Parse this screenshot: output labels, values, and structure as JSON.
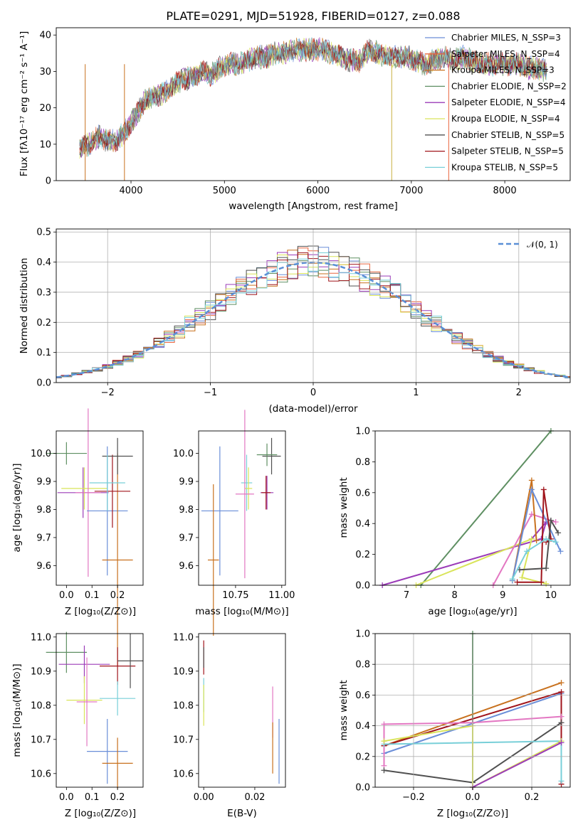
{
  "chart_data": [
    {
      "id": "spectrum",
      "type": "line",
      "title": "PLATE=0291, MJD=51928, FIBERID=0127, z=0.088",
      "xlabel": "wavelength [Angstrom, rest frame]",
      "ylabel": "Flux [fλ10⁻¹⁷ erg cm⁻² s⁻¹ A⁻¹]",
      "xlim": [
        3200,
        8700
      ],
      "ylim": [
        0,
        42
      ],
      "xticks": [
        "4000",
        "5000",
        "6000",
        "7000",
        "8000"
      ],
      "yticks": [
        "0",
        "10",
        "20",
        "30",
        "40"
      ],
      "grid": false,
      "legend_position": "top-right",
      "series": [
        {
          "name": "Chabrier MILES, N_SSP=3",
          "color": "#6a8ed8"
        },
        {
          "name": "Salpeter MILES, N_SSP=4",
          "color": "#e8653e"
        },
        {
          "name": "Kroupa MILES, N_SSP=3",
          "color": "#c8711e"
        },
        {
          "name": "Chabrier ELODIE, N_SSP=2",
          "color": "#5e8f62"
        },
        {
          "name": "Salpeter ELODIE, N_SSP=4",
          "color": "#9b3bb8"
        },
        {
          "name": "Kroupa ELODIE, N_SSP=4",
          "color": "#d9e45a"
        },
        {
          "name": "Chabrier STELIB, N_SSP=5",
          "color": "#505050"
        },
        {
          "name": "Salpeter STELIB, N_SSP=5",
          "color": "#a0151c"
        },
        {
          "name": "Kroupa STELIB, N_SSP=5",
          "color": "#78cfd8"
        }
      ],
      "continuum_points": [
        [
          3450,
          9
        ],
        [
          3550,
          10
        ],
        [
          3650,
          12
        ],
        [
          3750,
          11
        ],
        [
          3850,
          11
        ],
        [
          3950,
          14
        ],
        [
          4050,
          18
        ],
        [
          4150,
          22
        ],
        [
          4250,
          23
        ],
        [
          4350,
          24
        ],
        [
          4450,
          26
        ],
        [
          4550,
          28
        ],
        [
          4650,
          28
        ],
        [
          4750,
          30
        ],
        [
          4850,
          29
        ],
        [
          4950,
          31
        ],
        [
          5050,
          32
        ],
        [
          5150,
          32
        ],
        [
          5250,
          33
        ],
        [
          5350,
          34
        ],
        [
          5450,
          34
        ],
        [
          5550,
          35
        ],
        [
          5650,
          35
        ],
        [
          5750,
          36
        ],
        [
          5850,
          36
        ],
        [
          5950,
          36
        ],
        [
          6050,
          36
        ],
        [
          6150,
          35
        ],
        [
          6250,
          34
        ],
        [
          6350,
          33
        ],
        [
          6450,
          33
        ],
        [
          6550,
          36
        ],
        [
          6650,
          35
        ],
        [
          6750,
          34
        ],
        [
          6850,
          34
        ],
        [
          6950,
          34
        ],
        [
          7050,
          33
        ],
        [
          7150,
          32
        ],
        [
          7250,
          33
        ],
        [
          7350,
          34
        ],
        [
          7450,
          33
        ],
        [
          7550,
          34
        ],
        [
          7650,
          33
        ],
        [
          7750,
          32
        ],
        [
          7850,
          32
        ],
        [
          7950,
          32
        ],
        [
          8050,
          32
        ],
        [
          8150,
          32
        ],
        [
          8250,
          31
        ],
        [
          8350,
          31
        ],
        [
          8450,
          30
        ]
      ]
    },
    {
      "id": "residuals",
      "type": "bar",
      "xlabel": "(data-model)/error",
      "ylabel": "Normed distribution",
      "xlim": [
        -2.5,
        2.5
      ],
      "ylim": [
        0,
        0.51
      ],
      "xticks": [
        "−2",
        "−1",
        "0",
        "1",
        "2"
      ],
      "yticks": [
        "0.0",
        "0.1",
        "0.2",
        "0.3",
        "0.4",
        "0.5"
      ],
      "grid": true,
      "legend_position": "top-right",
      "reference_curve": {
        "name": "𝒩(0, 1)",
        "color": "#5a8fd6"
      },
      "bins": {
        "start": -2.55,
        "width": 0.1
      },
      "histogram_colors": [
        "#6a8ed8",
        "#e8653e",
        "#c8711e",
        "#5e8f62",
        "#9b3bb8",
        "#d9e45a",
        "#505050",
        "#a0151c",
        "#78cfd8"
      ]
    },
    {
      "id": "age-vs-Z",
      "type": "scatter",
      "xlabel": "Z [log₁₀(Z/Z⊙)]",
      "ylabel": "age  [log₁₀(age/yr)]",
      "xlim": [
        -0.04,
        0.3
      ],
      "ylim": [
        9.53,
        10.08
      ],
      "xticks": [
        "0.0",
        "0.1",
        "0.2"
      ],
      "yticks": [
        "9.6",
        "9.7",
        "9.8",
        "9.9",
        "10.0"
      ],
      "grid": false,
      "points": [
        {
          "x": 0.0,
          "y": 10.0,
          "xerr": 0.08,
          "yerr": 0.04,
          "color": "#5e8f62"
        },
        {
          "x": 0.065,
          "y": 9.86,
          "xerr": 0.1,
          "yerr": 0.09,
          "color": "#9b3bb8"
        },
        {
          "x": 0.07,
          "y": 9.875,
          "xerr": 0.09,
          "yerr": 0.075,
          "color": "#d9e45a"
        },
        {
          "x": 0.085,
          "y": 9.86,
          "xerr": 0.05,
          "yerr": 0.3,
          "color": "#e377c2"
        },
        {
          "x": 0.16,
          "y": 9.795,
          "xerr": 0.08,
          "yerr": 0.23,
          "color": "#6a8ed8"
        },
        {
          "x": 0.2,
          "y": 9.62,
          "xerr": 0.06,
          "yerr": 0.38,
          "color": "#c8711e"
        },
        {
          "x": 0.18,
          "y": 9.865,
          "xerr": 0.07,
          "yerr": 0.13,
          "color": "#a0151c"
        },
        {
          "x": 0.2,
          "y": 9.99,
          "xerr": 0.06,
          "yerr": 0.065,
          "color": "#505050"
        },
        {
          "x": 0.16,
          "y": 9.895,
          "xerr": 0.07,
          "yerr": 0.1,
          "color": "#78cfd8"
        }
      ]
    },
    {
      "id": "age-vs-mass",
      "type": "scatter",
      "xlabel": "mass [log₁₀(M/M⊙)]",
      "ylabel": "",
      "xlim": [
        10.55,
        11.02
      ],
      "ylim": [
        9.53,
        10.08
      ],
      "xticks": [
        "10.75",
        "11.00"
      ],
      "yticks": [
        "9.6",
        "9.7",
        "9.8",
        "9.9",
        "10.0"
      ],
      "grid": false,
      "points": [
        {
          "x": 10.945,
          "y": 9.99,
          "xerr": 0.05,
          "yerr": 0.065,
          "color": "#505050"
        },
        {
          "x": 10.92,
          "y": 9.995,
          "xerr": 0.055,
          "yerr": 0.04,
          "color": "#5e8f62"
        },
        {
          "x": 10.81,
          "y": 9.895,
          "xerr": 0.03,
          "yerr": 0.1,
          "color": "#78cfd8"
        },
        {
          "x": 10.82,
          "y": 9.875,
          "xerr": 0.02,
          "yerr": 0.075,
          "color": "#d9e45a"
        },
        {
          "x": 10.8,
          "y": 9.855,
          "xerr": 0.05,
          "yerr": 0.3,
          "color": "#e377c2"
        },
        {
          "x": 10.92,
          "y": 9.86,
          "xerr": 0.035,
          "yerr": 0.06,
          "color": "#9b3bb8"
        },
        {
          "x": 10.915,
          "y": 9.86,
          "xerr": 0.025,
          "yerr": 0.06,
          "color": "#a0151c"
        },
        {
          "x": 10.665,
          "y": 9.795,
          "xerr": 0.1,
          "yerr": 0.23,
          "color": "#6a8ed8"
        },
        {
          "x": 10.63,
          "y": 9.62,
          "xerr": 0.03,
          "yerr": 0.27,
          "color": "#c8711e"
        }
      ]
    },
    {
      "id": "weight-vs-age",
      "type": "line",
      "xlabel": "age  [log₁₀(age/yr)]",
      "ylabel": "mass weight",
      "xlim": [
        6.35,
        10.4
      ],
      "ylim": [
        0,
        1
      ],
      "xticks": [
        "7",
        "8",
        "9",
        "10"
      ],
      "yticks": [
        "0.0",
        "0.2",
        "0.4",
        "0.6",
        "0.8",
        "1.0"
      ],
      "grid": false,
      "series": [
        {
          "color": "#5e8f62",
          "points": [
            [
              7.3,
              0.0
            ],
            [
              10.0,
              1.0
            ]
          ]
        },
        {
          "color": "#9b3bb8",
          "points": [
            [
              6.5,
              0.0
            ],
            [
              9.8,
              0.3
            ],
            [
              9.9,
              0.41
            ],
            [
              9.6,
              0.3
            ]
          ]
        },
        {
          "color": "#d9e45a",
          "points": [
            [
              7.2,
              0.0
            ],
            [
              9.6,
              0.3
            ],
            [
              9.4,
              0.05
            ],
            [
              9.9,
              0.01
            ]
          ]
        },
        {
          "color": "#e377c2",
          "points": [
            [
              8.8,
              0.0
            ],
            [
              9.6,
              0.46
            ],
            [
              10.1,
              0.41
            ]
          ]
        },
        {
          "color": "#c8711e",
          "points": [
            [
              9.2,
              0.03
            ],
            [
              9.6,
              0.68
            ],
            [
              9.7,
              0.29
            ]
          ]
        },
        {
          "color": "#6a8ed8",
          "points": [
            [
              9.2,
              0.03
            ],
            [
              9.6,
              0.62
            ],
            [
              10.2,
              0.22
            ]
          ]
        },
        {
          "color": "#a0151c",
          "points": [
            [
              9.3,
              0.02
            ],
            [
              9.8,
              0.02
            ],
            [
              9.85,
              0.62
            ],
            [
              10.0,
              0.3
            ],
            [
              9.9,
              0.28
            ]
          ]
        },
        {
          "color": "#505050",
          "points": [
            [
              9.35,
              0.1
            ],
            [
              9.9,
              0.11
            ],
            [
              10.0,
              0.42
            ],
            [
              10.15,
              0.34
            ]
          ]
        },
        {
          "color": "#78cfd8",
          "points": [
            [
              9.2,
              0.04
            ],
            [
              9.5,
              0.22
            ],
            [
              9.9,
              0.3
            ],
            [
              10.1,
              0.28
            ]
          ]
        }
      ]
    },
    {
      "id": "mass-vs-Z",
      "type": "scatter",
      "xlabel": "Z [log₁₀(Z/Z⊙)]",
      "ylabel": "mass [log₁₀(M/M⊙)]",
      "xlim": [
        -0.04,
        0.3
      ],
      "ylim": [
        10.56,
        11.01
      ],
      "xticks": [
        "0.0",
        "0.1",
        "0.2"
      ],
      "yticks": [
        "10.6",
        "10.7",
        "10.8",
        "10.9",
        "11.0"
      ],
      "grid": false,
      "points": [
        {
          "x": 0.0,
          "y": 10.955,
          "xerr": 0.08,
          "yerr": 0.06,
          "color": "#5e8f62"
        },
        {
          "x": 0.07,
          "y": 10.92,
          "xerr": 0.1,
          "yerr": 0.055,
          "color": "#9b3bb8"
        },
        {
          "x": 0.2,
          "y": 10.915,
          "xerr": 0.07,
          "yerr": 0.055,
          "color": "#a0151c"
        },
        {
          "x": 0.25,
          "y": 10.93,
          "xerr": 0.05,
          "yerr": 0.08,
          "color": "#505050"
        },
        {
          "x": 0.07,
          "y": 10.815,
          "xerr": 0.07,
          "yerr": 0.07,
          "color": "#d9e45a"
        },
        {
          "x": 0.08,
          "y": 10.81,
          "xerr": 0.04,
          "yerr": 0.13,
          "color": "#e377c2"
        },
        {
          "x": 0.2,
          "y": 10.82,
          "xerr": 0.07,
          "yerr": 0.05,
          "color": "#78cfd8"
        },
        {
          "x": 0.16,
          "y": 10.665,
          "xerr": 0.08,
          "yerr": 0.095,
          "color": "#6a8ed8"
        },
        {
          "x": 0.2,
          "y": 10.63,
          "xerr": 0.06,
          "yerr": 0.075,
          "color": "#c8711e"
        }
      ]
    },
    {
      "id": "mass-vs-ebv",
      "type": "scatter",
      "xlabel": "E(B-V)",
      "ylabel": "",
      "xlim": [
        -0.002,
        0.032
      ],
      "ylim": [
        10.56,
        11.01
      ],
      "xticks": [
        "0.00",
        "0.02"
      ],
      "yticks": [
        "10.6",
        "10.7",
        "10.8",
        "10.9",
        "11.0"
      ],
      "grid": false,
      "points": [
        {
          "x": 0.0,
          "y": 10.94,
          "yerr": 0.05,
          "color": "#a0151c"
        },
        {
          "x": 0.0,
          "y": 10.94,
          "yerr": 0.03,
          "color": "#505050"
        },
        {
          "x": 0.0,
          "y": 10.83,
          "yerr": 0.05,
          "color": "#78cfd8"
        },
        {
          "x": 0.0,
          "y": 10.8,
          "yerr": 0.06,
          "color": "#d9e45a"
        },
        {
          "x": 0.027,
          "y": 10.78,
          "yerr": 0.075,
          "color": "#e377c2"
        },
        {
          "x": 0.027,
          "y": 10.675,
          "yerr": 0.075,
          "color": "#c8711e"
        },
        {
          "x": 0.0295,
          "y": 10.665,
          "yerr": 0.095,
          "color": "#6a8ed8"
        }
      ]
    },
    {
      "id": "weight-vs-Z",
      "type": "line",
      "xlabel": "Z [log₁₀(Z/Z⊙)]",
      "ylabel": "mass weight",
      "xlim": [
        -0.33,
        0.33
      ],
      "ylim": [
        0,
        1
      ],
      "xticks": [
        "−0.2",
        "0.0",
        "0.2"
      ],
      "yticks": [
        "0.0",
        "0.2",
        "0.4",
        "0.6",
        "0.8",
        "1.0"
      ],
      "grid": true,
      "series": [
        {
          "color": "#5e8f62",
          "points": [
            [
              0.0,
              0.0
            ],
            [
              0.0,
              1.0
            ]
          ]
        },
        {
          "color": "#c8711e",
          "points": [
            [
              -0.3,
              0.27
            ],
            [
              0.3,
              0.68
            ]
          ]
        },
        {
          "color": "#6a8ed8",
          "points": [
            [
              -0.3,
              0.22
            ],
            [
              0.3,
              0.61
            ]
          ]
        },
        {
          "color": "#a0151c",
          "points": [
            [
              -0.3,
              0.27
            ],
            [
              0.3,
              0.62
            ],
            [
              0.3,
              0.02
            ]
          ]
        },
        {
          "color": "#e377c2",
          "points": [
            [
              -0.3,
              0.14
            ],
            [
              -0.3,
              0.41
            ],
            [
              0.0,
              0.42
            ],
            [
              0.3,
              0.46
            ]
          ]
        },
        {
          "color": "#505050",
          "points": [
            [
              -0.3,
              0.11
            ],
            [
              0.0,
              0.03
            ],
            [
              0.3,
              0.42
            ]
          ]
        },
        {
          "color": "#78cfd8",
          "points": [
            [
              -0.3,
              0.28
            ],
            [
              0.3,
              0.3
            ],
            [
              0.3,
              0.04
            ]
          ]
        },
        {
          "color": "#d9e45a",
          "points": [
            [
              -0.3,
              0.3
            ],
            [
              0.0,
              0.4
            ],
            [
              0.0,
              0.0
            ],
            [
              0.3,
              0.3
            ]
          ]
        },
        {
          "color": "#9b3bb8",
          "points": [
            [
              0.0,
              0.0
            ],
            [
              0.3,
              0.29
            ]
          ]
        }
      ]
    }
  ]
}
